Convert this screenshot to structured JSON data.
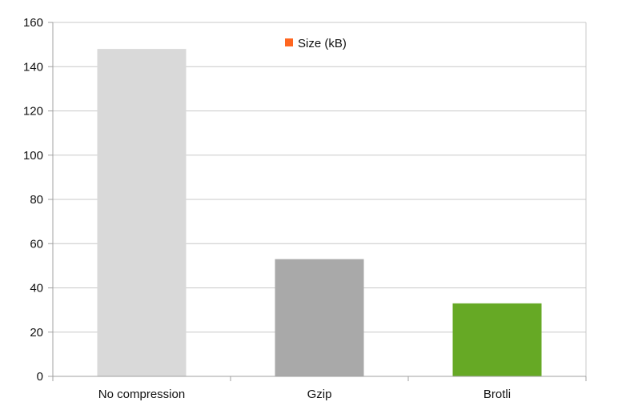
{
  "chart_data": {
    "type": "bar",
    "categories": [
      "No compression",
      "Gzip",
      "Brotli"
    ],
    "series": [
      {
        "name": "Size (kB)",
        "values": [
          148,
          53,
          33
        ],
        "bar_colors": [
          "#d9d9d9",
          "#a9a9a9",
          "#66a925"
        ]
      }
    ],
    "ylim": [
      0,
      160
    ],
    "yticks": [
      0,
      20,
      40,
      60,
      80,
      100,
      120,
      140,
      160
    ],
    "grid": true,
    "legend": {
      "position": "top-center",
      "marker_color": "#ff6620"
    },
    "colors": {
      "grid": "#c8c8c8",
      "axis": "#a0a0a0"
    }
  }
}
